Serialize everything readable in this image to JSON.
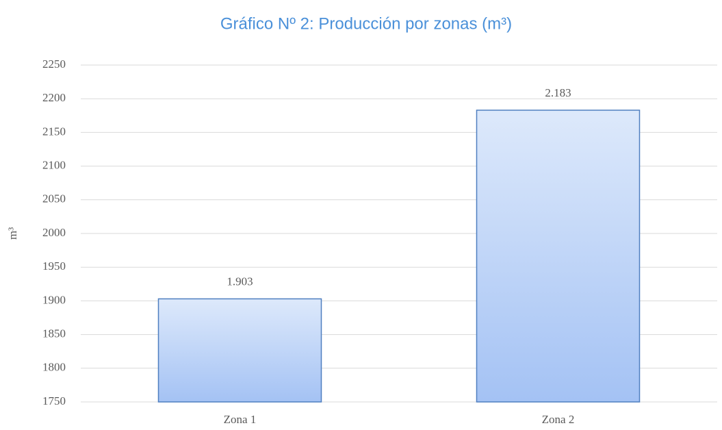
{
  "chart_data": {
    "type": "bar",
    "title": "Gráfico Nº 2: Producción por zonas (m³)",
    "y_label": "m³",
    "categories": [
      "Zona 1",
      "Zona 2"
    ],
    "values": [
      1903,
      2183
    ],
    "value_labels": [
      "1.903",
      "2.183"
    ],
    "color": "#a4c2f4",
    "ylim": [
      1750,
      2250
    ],
    "yticks": [
      1750,
      1800,
      1850,
      1900,
      1950,
      2000,
      2050,
      2100,
      2150,
      2200,
      2250
    ],
    "grid": true
  }
}
